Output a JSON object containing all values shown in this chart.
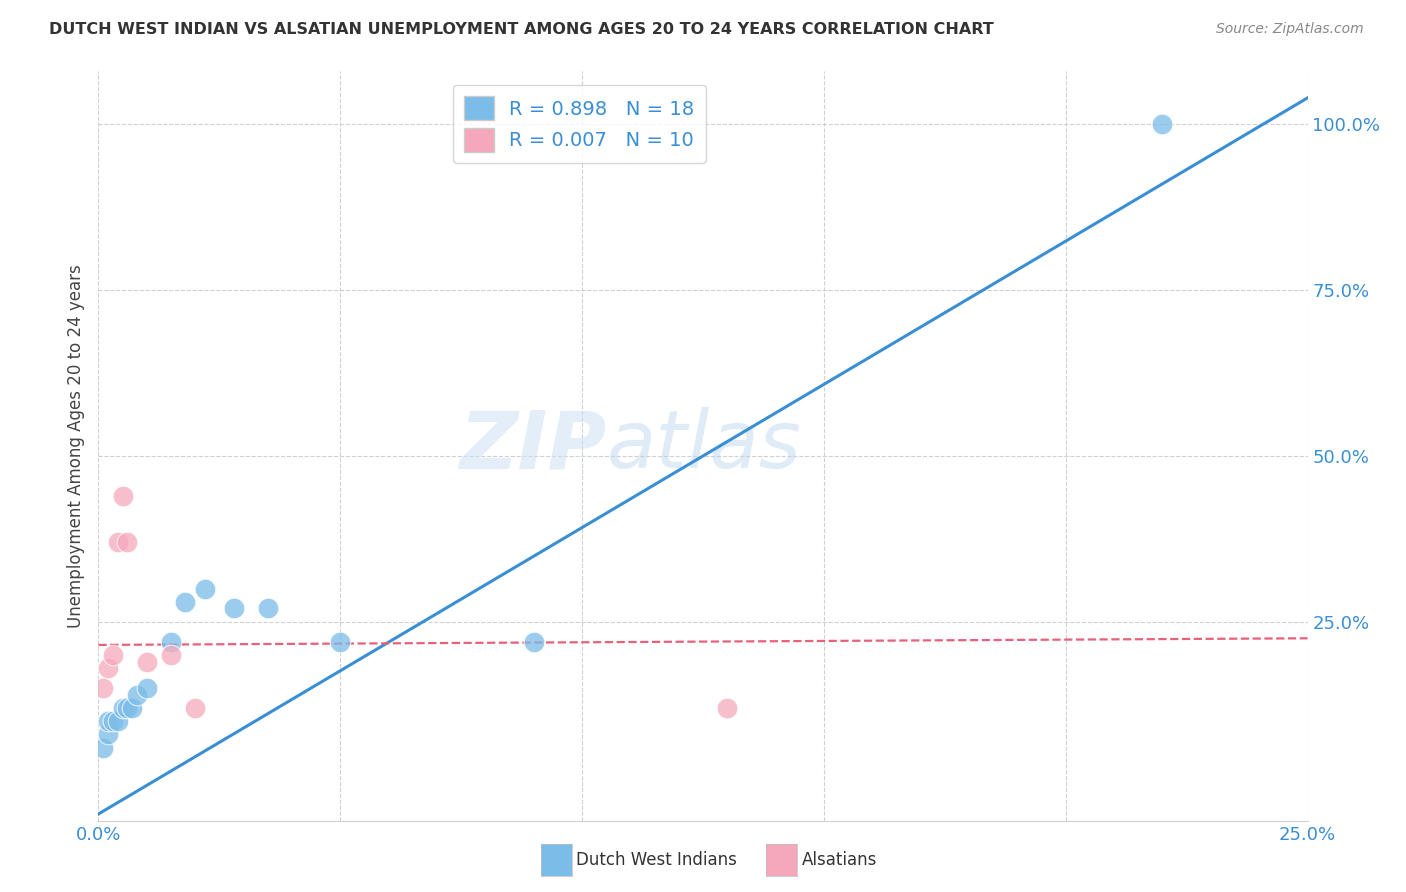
{
  "title": "DUTCH WEST INDIAN VS ALSATIAN UNEMPLOYMENT AMONG AGES 20 TO 24 YEARS CORRELATION CHART",
  "source": "Source: ZipAtlas.com",
  "ylabel": "Unemployment Among Ages 20 to 24 years",
  "xmin": 0.0,
  "xmax": 0.25,
  "ymin": -0.05,
  "ymax": 1.08,
  "xticks": [
    0.0,
    0.05,
    0.1,
    0.15,
    0.2,
    0.25
  ],
  "xtick_labels": [
    "0.0%",
    "",
    "",
    "",
    "",
    "25.0%"
  ],
  "ytick_positions": [
    0.25,
    0.5,
    0.75,
    1.0
  ],
  "ytick_labels": [
    "25.0%",
    "50.0%",
    "75.0%",
    "100.0%"
  ],
  "blue_label": "Dutch West Indians",
  "pink_label": "Alsatians",
  "blue_R": "0.898",
  "blue_N": "18",
  "pink_R": "0.007",
  "pink_N": "10",
  "blue_color": "#7bbce8",
  "pink_color": "#f5a8bb",
  "blue_line_color": "#3a8fd4",
  "pink_line_color": "#e8607a",
  "watermark_zip": "ZIP",
  "watermark_atlas": "atlas",
  "blue_line_x0": 0.0,
  "blue_line_y0": -0.04,
  "blue_line_x1": 0.25,
  "blue_line_y1": 1.04,
  "pink_line_x0": 0.0,
  "pink_line_x1": 0.25,
  "pink_line_y0": 0.215,
  "pink_line_y1": 0.225,
  "blue_x": [
    0.001,
    0.002,
    0.002,
    0.003,
    0.004,
    0.005,
    0.006,
    0.007,
    0.008,
    0.01,
    0.015,
    0.018,
    0.022,
    0.028,
    0.035,
    0.05,
    0.09,
    0.22
  ],
  "blue_y": [
    0.06,
    0.08,
    0.1,
    0.1,
    0.1,
    0.12,
    0.12,
    0.12,
    0.14,
    0.15,
    0.22,
    0.28,
    0.3,
    0.27,
    0.27,
    0.22,
    0.22,
    1.0
  ],
  "pink_x": [
    0.001,
    0.002,
    0.003,
    0.004,
    0.005,
    0.006,
    0.01,
    0.015,
    0.02,
    0.13
  ],
  "pink_y": [
    0.15,
    0.18,
    0.2,
    0.37,
    0.44,
    0.37,
    0.19,
    0.2,
    0.12,
    0.12
  ],
  "background_color": "#ffffff",
  "grid_color": "#d0d0d0",
  "title_color": "#333333",
  "source_color": "#888888",
  "tick_color": "#3a8fd4"
}
